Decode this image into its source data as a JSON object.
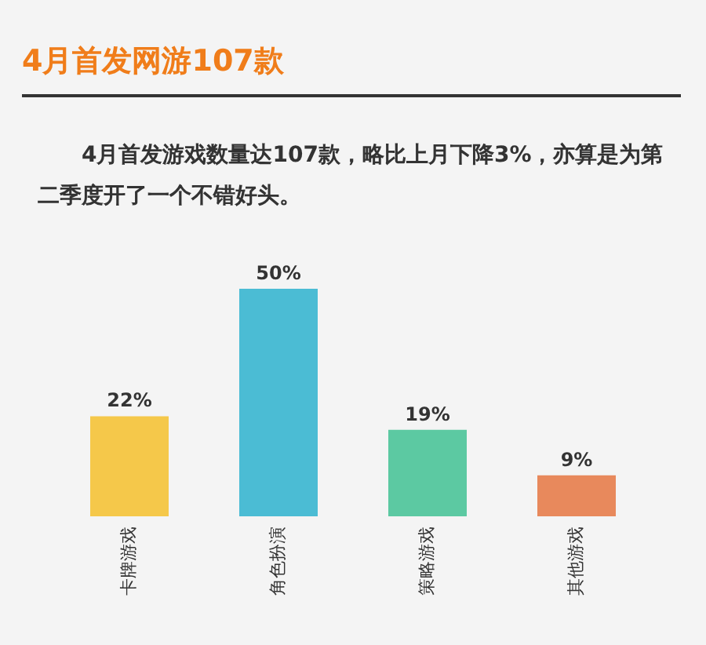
{
  "chart_data": {
    "type": "bar",
    "title": "4月首发网游107款",
    "subtitle": "4月首发游戏数量达107款，略比上月下降3%，亦算是为第二季度开了一个不错好头。",
    "categories": [
      "卡牌游戏",
      "角色扮演",
      "策略游戏",
      "其他游戏"
    ],
    "values": [
      22,
      50,
      19,
      9
    ],
    "colors": [
      "#f5c84a",
      "#4bbcd4",
      "#5cc9a2",
      "#e8895c"
    ],
    "value_labels": [
      "22%",
      "50%",
      "19%",
      "9%"
    ]
  }
}
